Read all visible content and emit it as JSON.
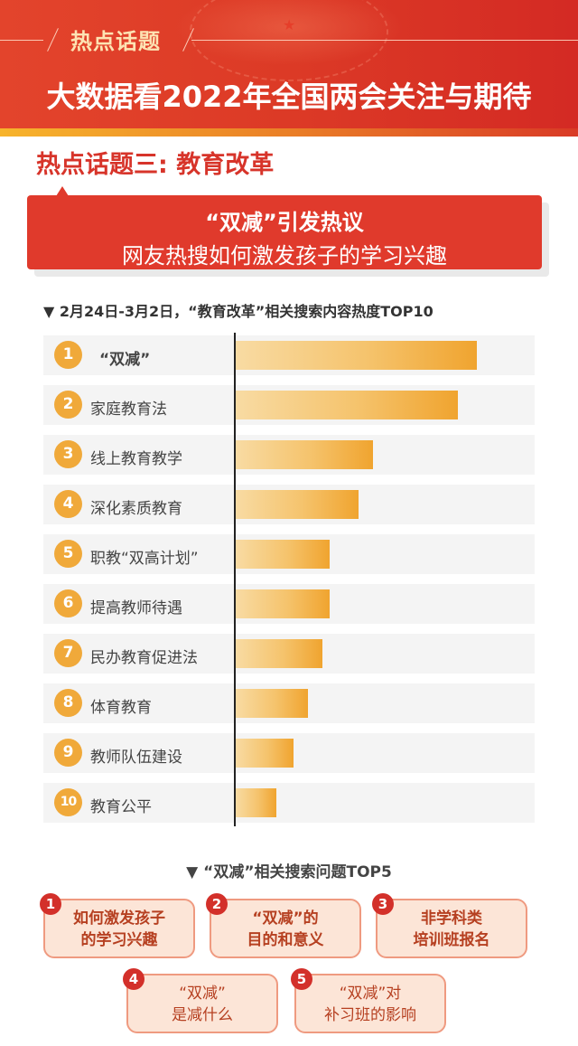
{
  "header": {
    "tag": "热点话题",
    "title": "大数据看2022年全国两会关注与期待"
  },
  "section": {
    "title": "热点话题三: 教育改革"
  },
  "callout": {
    "line1": "“双减”引发热议",
    "line2": "网友热搜如何激发孩子的学习兴趣"
  },
  "top10": {
    "heading": "▼ 2月24日-3月2日，“教育改革”相关搜索内容热度TOP10"
  },
  "chart_data": {
    "type": "bar",
    "orientation": "horizontal",
    "title": "2月24日-3月2日，“教育改革”相关搜索内容热度TOP10",
    "categories": [
      "“双减”",
      "家庭教育法",
      "线上教育教学",
      "深化素质教育",
      "职教“双高计划”",
      "提高教师待遇",
      "民办教育促进法",
      "体育教育",
      "教师队伍建设",
      "教育公平"
    ],
    "ranks": [
      "1",
      "2",
      "3",
      "4",
      "5",
      "6",
      "7",
      "8",
      "9",
      "10"
    ],
    "values": [
      100,
      92,
      57,
      51,
      39,
      39,
      36,
      30,
      24,
      17
    ],
    "value_unit": "relative popularity (bar length, no axis labels shown)",
    "xlabel": "",
    "ylabel": "",
    "grid": false,
    "colors": {
      "bar_start": "#f8dba3",
      "bar_end": "#f0a42f",
      "badge": "#f0a93a"
    }
  },
  "top5": {
    "heading": "▼ “双减”相关搜索问题TOP5",
    "items": [
      {
        "rank": "1",
        "line1": "如何激发孩子",
        "line2": "的学习兴趣"
      },
      {
        "rank": "2",
        "line1": "“双减”的",
        "line2": "目的和意义"
      },
      {
        "rank": "3",
        "line1": "非学科类",
        "line2": "培训班报名"
      },
      {
        "rank": "4",
        "line1": "“双减”",
        "line2": "是减什么"
      },
      {
        "rank": "5",
        "line1": "“双减”对",
        "line2": "补习班的影响"
      }
    ]
  }
}
